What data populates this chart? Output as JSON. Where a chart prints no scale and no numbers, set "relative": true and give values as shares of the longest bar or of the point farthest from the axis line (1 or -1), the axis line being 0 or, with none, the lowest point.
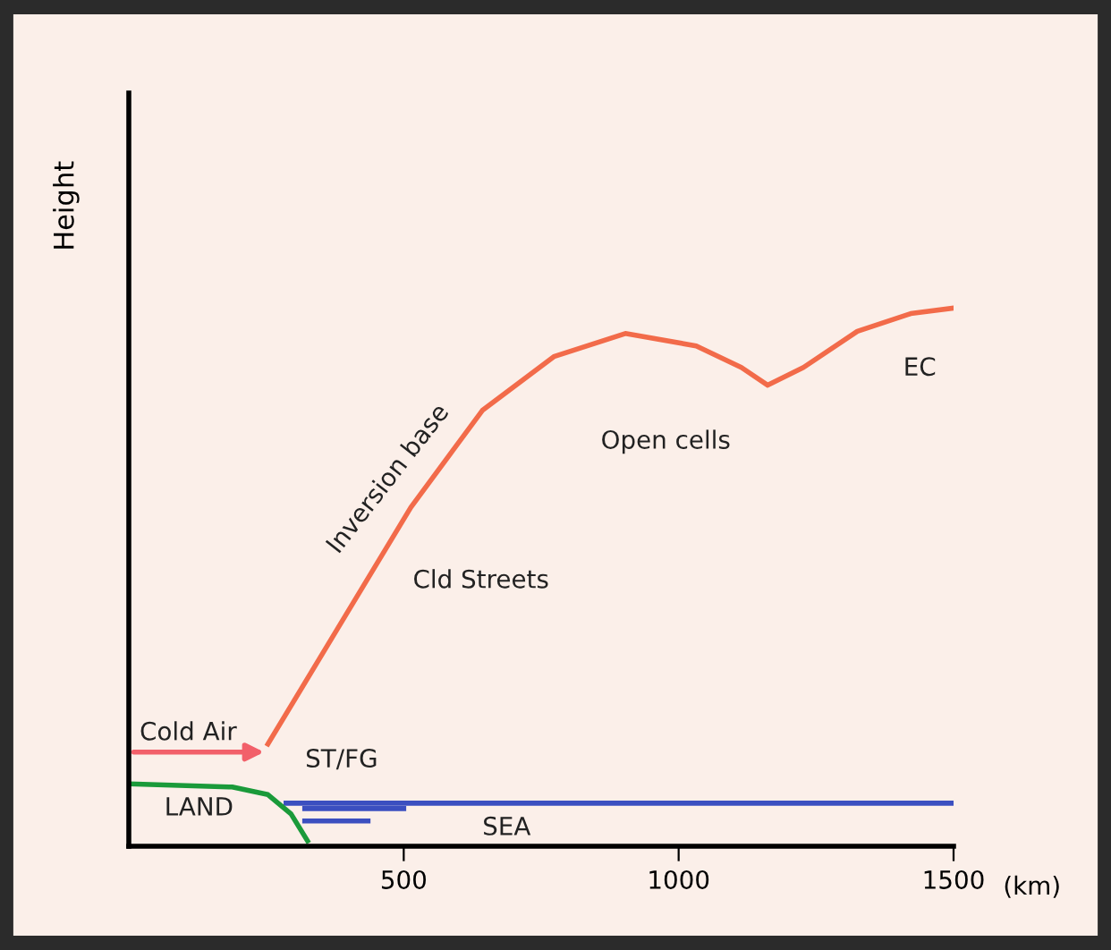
{
  "chart_data": {
    "type": "line",
    "relative": true,
    "ylabel": "Height",
    "xlim": [
      0,
      1500
    ],
    "xticks": [
      500,
      1000,
      1500
    ],
    "grid": false,
    "legend": false,
    "marker": "none",
    "line_style": "solid",
    "series": [
      {
        "color": "#f26b4a",
        "x": [
          253,
          383,
          513,
          643,
          773,
          903,
          1032,
          1114,
          1162,
          1227,
          1325,
          1422,
          1497
        ],
        "values": [
          0.19,
          0.41,
          0.63,
          0.81,
          0.91,
          0.953,
          0.93,
          0.89,
          0.857,
          0.89,
          0.957,
          0.99,
          1.0
        ]
      },
      {
        "color": "#3b4fc0",
        "x": [
          286,
          1497
        ],
        "values": [
          0.08,
          0.08
        ]
      },
      {
        "color": "#3b4fc0",
        "x": [
          320,
          500
        ],
        "values": [
          0.07,
          0.07
        ]
      },
      {
        "color": "#3b4fc0",
        "x": [
          320,
          435
        ],
        "values": [
          0.047,
          0.047
        ]
      },
      {
        "color": "#1a9a3a",
        "x": [
          0,
          188,
          253,
          295,
          325
        ],
        "values": [
          0.116,
          0.11,
          0.096,
          0.06,
          0.01
        ]
      }
    ],
    "annotations": [
      "Inversion base",
      "Cld Streets",
      "Open cells",
      "EC",
      "ST/FG",
      "Cold Air",
      "LAND",
      "SEA",
      "(km)"
    ]
  }
}
